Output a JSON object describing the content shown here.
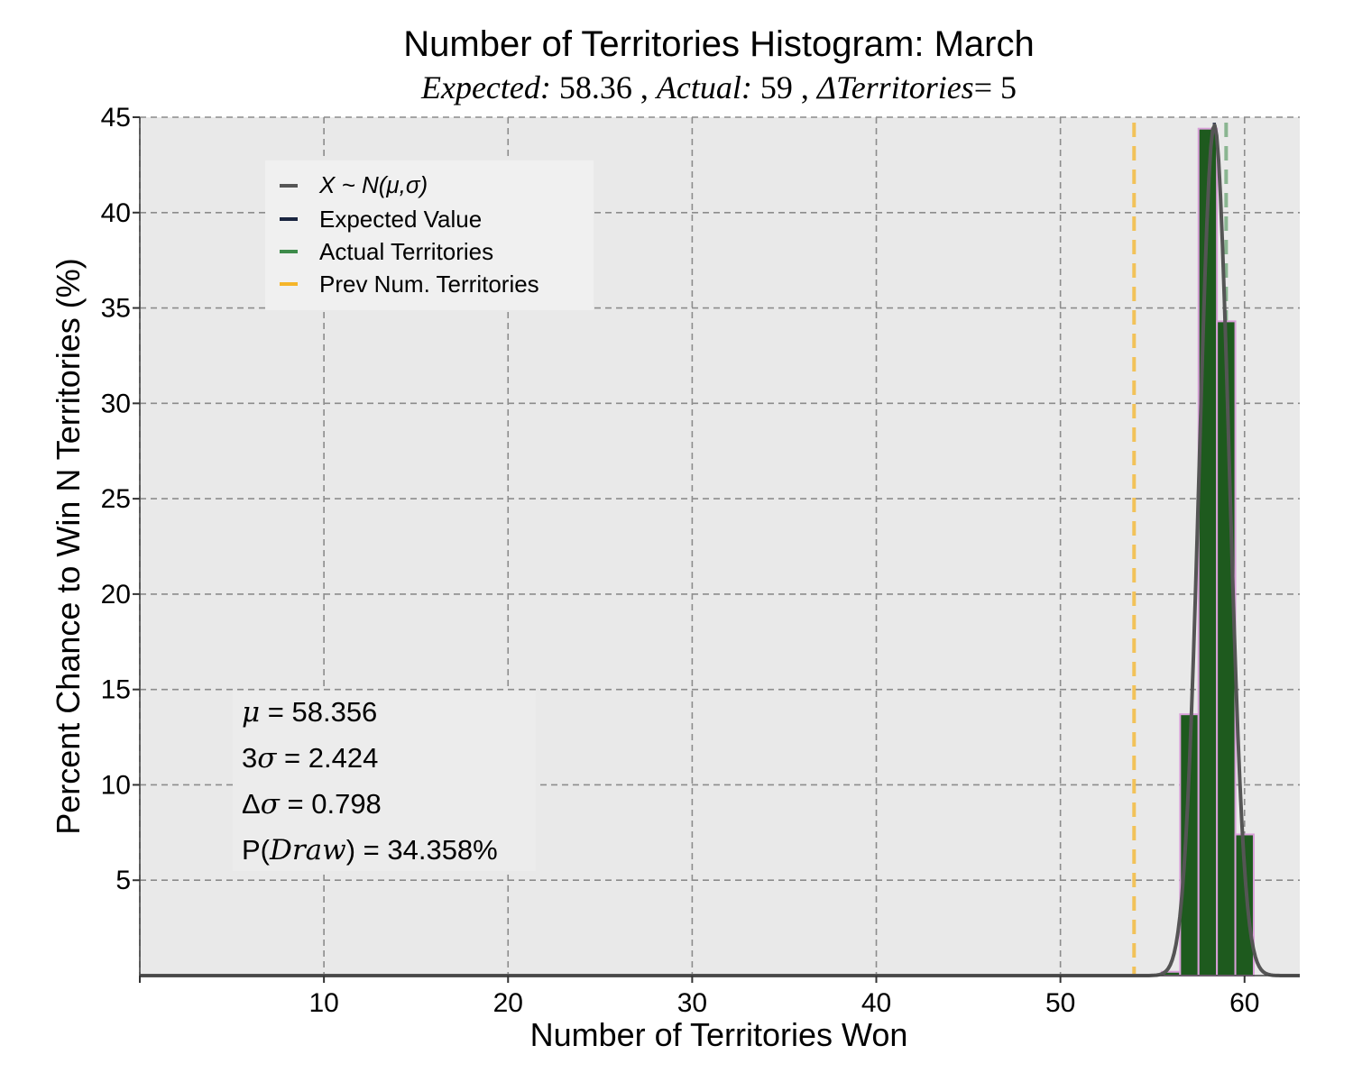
{
  "chart_data": {
    "type": "bar",
    "title": "Number of Territories Histogram: March",
    "subtitle": {
      "expected_label": "Expected:",
      "expected_value": "58.36",
      "actual_label": "Actual:",
      "actual_value": "59",
      "delta_label": "ΔTerritories",
      "delta_value": "= 5",
      "separator": " , "
    },
    "xlabel": "Number of Territories Won",
    "ylabel": "Percent Chance to Win N Territories (%)",
    "xlim": [
      0,
      63
    ],
    "ylim": [
      0,
      45
    ],
    "xticks": [
      10,
      20,
      30,
      40,
      50,
      60
    ],
    "yticks": [
      5,
      10,
      15,
      20,
      25,
      30,
      35,
      40,
      45
    ],
    "grid": true,
    "bars": [
      {
        "x": 56,
        "value": 0.2
      },
      {
        "x": 57,
        "value": 13.7
      },
      {
        "x": 58,
        "value": 44.4
      },
      {
        "x": 59,
        "value": 34.3
      },
      {
        "x": 60,
        "value": 7.4
      }
    ],
    "normal_curve": {
      "name": "X ~ N(μ,σ)",
      "mu": 58.356,
      "sigma": 0.808,
      "peak_percent": 44.6,
      "x_range": [
        0,
        63
      ]
    },
    "vlines": {
      "expected": 58.36,
      "actual": 59,
      "previous": 54
    },
    "legend": {
      "placement": "upper-left",
      "items": [
        {
          "label": "X ~ N(μ,σ)",
          "color": "#555555",
          "italic": true
        },
        {
          "label": "Expected Value",
          "color": "#1a2540",
          "italic": false
        },
        {
          "label": "Actual Territories",
          "color": "#3d8b4a",
          "italic": false
        },
        {
          "label": "Prev Num. Territories",
          "color": "#f5b52a",
          "italic": false
        }
      ]
    },
    "stats": {
      "mu": {
        "symbol": "μ",
        "value": " = 58.356"
      },
      "three_sigma": {
        "prefix": "3",
        "symbol": "σ",
        "value": " = 2.424"
      },
      "delta_sigma": {
        "prefix": "Δ",
        "symbol": "σ",
        "value": " = 0.798"
      },
      "p_draw": {
        "prefix": "P(",
        "symbol": "Draw",
        "value": ") = 34.358%"
      }
    },
    "colors": {
      "bar_fill": "#1e5a1e",
      "bar_edge": "#d9a0d9",
      "curve": "#555555",
      "expected": "#1a2540",
      "actual": "#3d8b4a",
      "previous": "#f5b52a",
      "plot_background": "#e9e9e9"
    }
  }
}
